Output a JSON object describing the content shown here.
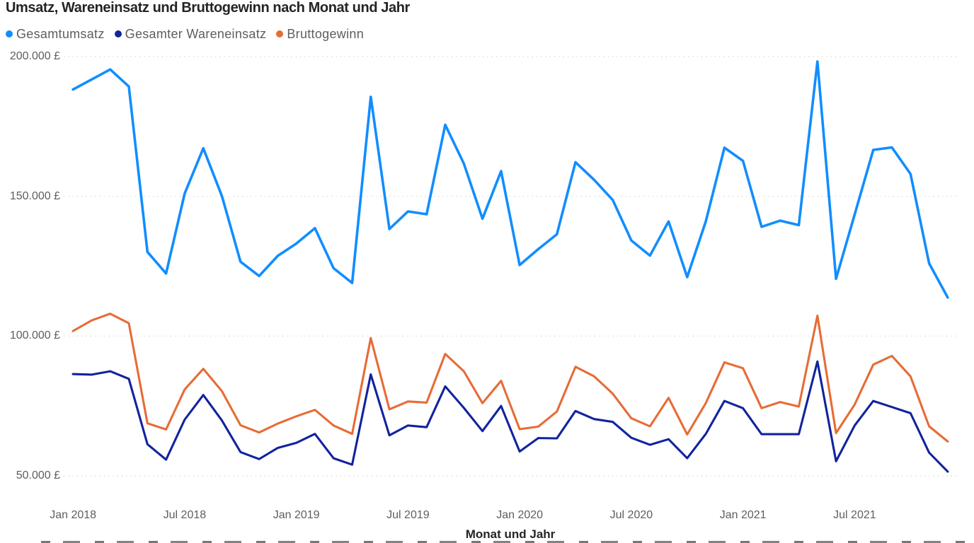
{
  "title": "Umsatz, Wareneinsatz und Bruttogewinn nach Monat und Jahr",
  "y_axis": {
    "tick_labels": [
      "200.000 £",
      "150.000 £",
      "100.000 £",
      "50.000 £"
    ],
    "ticks": [
      200000,
      150000,
      100000,
      50000
    ]
  },
  "x_axis": {
    "title": "Monat und Jahr",
    "tick_labels": [
      "Jan 2018",
      "Jul 2018",
      "Jan 2019",
      "Jul 2019",
      "Jan 2020",
      "Jul 2020",
      "Jan 2021",
      "Jul 2021"
    ],
    "tick_month_indexes": [
      0,
      6,
      12,
      18,
      24,
      30,
      36,
      42
    ]
  },
  "colors": {
    "gesamtumsatz": "#118DFF",
    "wareneinsatz": "#12239E",
    "bruttogewinn": "#E66C37",
    "grid": "#DADADA",
    "axis_text": "#605E5C",
    "title_text": "#252423"
  },
  "chart_data": {
    "type": "line",
    "title": "Umsatz, Wareneinsatz und Bruttogewinn nach Monat und Jahr",
    "xlabel": "Monat und Jahr",
    "ylabel": "",
    "ylim": [
      50000,
      200000
    ],
    "grid": "horizontal-dotted",
    "legend_position": "top-left",
    "currency": "£",
    "x": [
      "Jan 2018",
      "Feb 2018",
      "Mär 2018",
      "Apr 2018",
      "Mai 2018",
      "Jun 2018",
      "Jul 2018",
      "Aug 2018",
      "Sep 2018",
      "Okt 2018",
      "Nov 2018",
      "Dez 2018",
      "Jan 2019",
      "Feb 2019",
      "Mär 2019",
      "Apr 2019",
      "Mai 2019",
      "Jun 2019",
      "Jul 2019",
      "Aug 2019",
      "Sep 2019",
      "Okt 2019",
      "Nov 2019",
      "Dez 2019",
      "Jan 2020",
      "Feb 2020",
      "Mär 2020",
      "Apr 2020",
      "Mai 2020",
      "Jun 2020",
      "Jul 2020",
      "Aug 2020",
      "Sep 2020",
      "Okt 2020",
      "Nov 2020",
      "Dez 2020",
      "Jan 2021",
      "Feb 2021",
      "Mär 2021",
      "Apr 2021",
      "Mai 2021",
      "Jun 2021",
      "Jul 2021",
      "Aug 2021",
      "Sep 2021",
      "Okt 2021",
      "Nov 2021",
      "Dez 2021"
    ],
    "series": [
      {
        "name": "Gesamtumsatz",
        "color": "#118DFF",
        "stroke_width": 3.6,
        "values": [
          188200,
          191800,
          195400,
          189300,
          130100,
          122400,
          151000,
          167200,
          150100,
          126600,
          121500,
          128700,
          133100,
          138600,
          124300,
          119000,
          185600,
          138300,
          144600,
          143600,
          175600,
          161700,
          142000,
          159000,
          125400,
          131100,
          136400,
          162200,
          155900,
          148700,
          134200,
          128800,
          141000,
          121100,
          141000,
          167400,
          162700,
          139100,
          141300,
          139700,
          198200,
          120500,
          143500,
          166600,
          167500,
          158000,
          126000,
          113800
        ]
      },
      {
        "name": "Gesamter Wareneinsatz",
        "color": "#12239E",
        "stroke_width": 3.1,
        "values": [
          86400,
          86200,
          87400,
          84700,
          61300,
          55800,
          70100,
          78900,
          69800,
          58500,
          56000,
          60000,
          61800,
          65000,
          56300,
          54000,
          86300,
          64500,
          68000,
          67400,
          82000,
          74300,
          66000,
          75000,
          58700,
          63500,
          63400,
          73200,
          70300,
          69300,
          63600,
          61100,
          63100,
          56300,
          65000,
          76800,
          74200,
          64900,
          64900,
          64900,
          90900,
          55200,
          68000,
          76800,
          74600,
          72400,
          58300,
          51500
        ]
      },
      {
        "name": "Bruttogewinn",
        "color": "#E66C37",
        "stroke_width": 3.1,
        "values": [
          101800,
          105600,
          108000,
          104600,
          68800,
          66600,
          80900,
          88300,
          80300,
          68100,
          65500,
          68700,
          71300,
          73600,
          68000,
          65000,
          99300,
          73800,
          76600,
          76200,
          93600,
          87400,
          76000,
          84000,
          66700,
          67600,
          73000,
          89000,
          85600,
          79400,
          70600,
          67700,
          77900,
          64800,
          76000,
          90600,
          88500,
          74200,
          76400,
          74800,
          107300,
          65300,
          75500,
          89800,
          92900,
          85600,
          67700,
          62300
        ]
      }
    ]
  }
}
